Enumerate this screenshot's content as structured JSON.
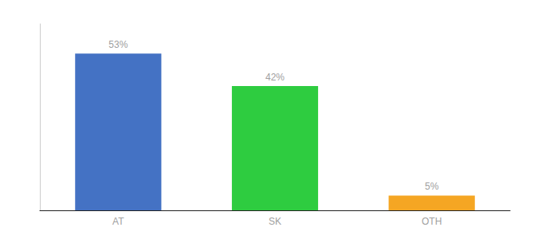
{
  "chart_data": {
    "type": "bar",
    "categories": [
      "AT",
      "SK",
      "OTH"
    ],
    "values": [
      53,
      42,
      5
    ],
    "colors": [
      "#4472c4",
      "#2ecc40",
      "#f5a623"
    ],
    "value_labels": [
      "53%",
      "42%",
      "5%"
    ],
    "data_labels": true,
    "ylim": [
      0,
      63
    ],
    "grid": false,
    "tick_labels": "x"
  }
}
